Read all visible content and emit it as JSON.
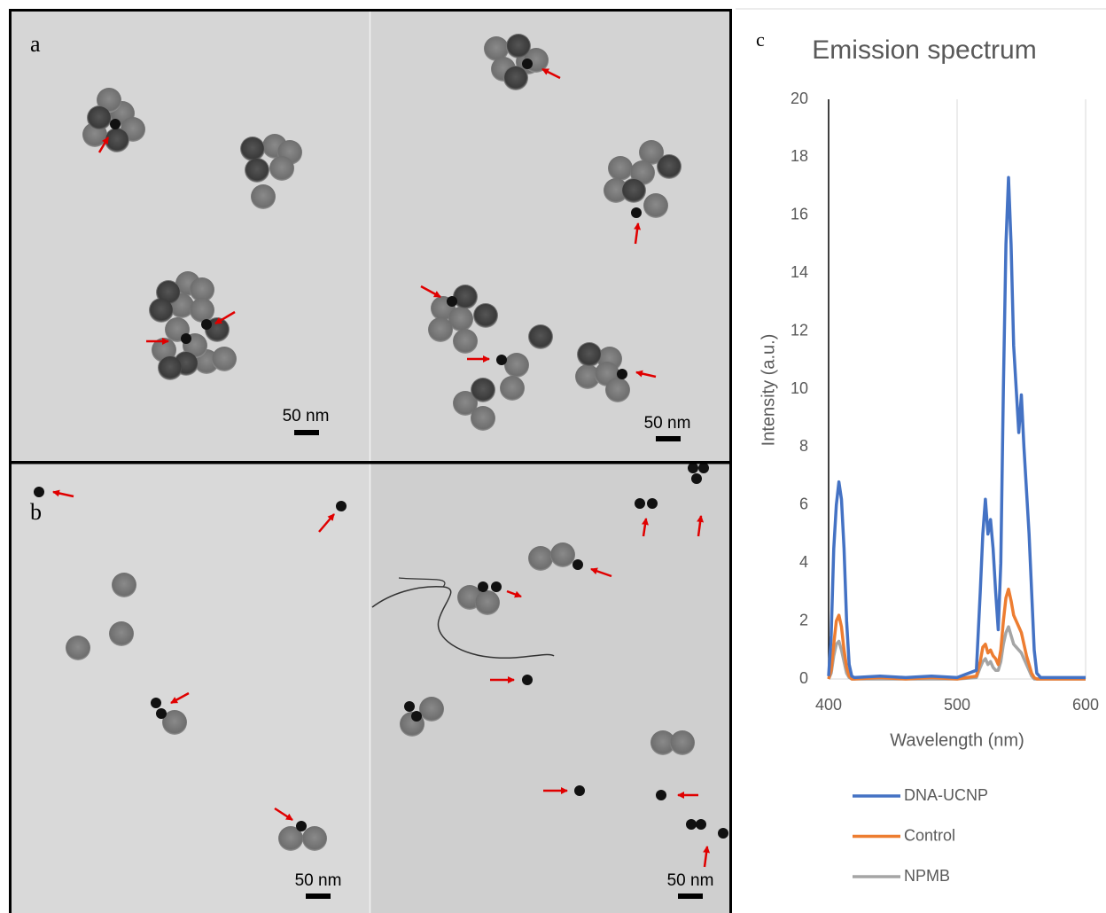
{
  "figure": {
    "panel_labels": [
      "a",
      "b",
      "c"
    ],
    "scale_bar_labels": [
      "50 nm",
      "50 nm",
      "50 nm",
      "50 nm"
    ]
  },
  "chart_data": {
    "type": "line",
    "title": "Emission spectrum",
    "x_label": "Wavelength (nm)",
    "y_label": "Intensity (a.u.)",
    "x": [
      400,
      402,
      404,
      406,
      408,
      410,
      412,
      414,
      416,
      418,
      420,
      440,
      460,
      480,
      500,
      515,
      518,
      520,
      522,
      524,
      526,
      528,
      530,
      532,
      534,
      536,
      538,
      540,
      542,
      544,
      546,
      548,
      550,
      552,
      554,
      556,
      558,
      560,
      562,
      565,
      580,
      600
    ],
    "series": [
      {
        "name": "DNA-UCNP",
        "color": "#4472c4",
        "values": [
          0.1,
          1.5,
          4.5,
          6.0,
          6.8,
          6.2,
          4.5,
          2.0,
          0.5,
          0.1,
          0.05,
          0.1,
          0.05,
          0.1,
          0.05,
          0.3,
          3.0,
          5.0,
          6.2,
          5.0,
          5.5,
          4.5,
          3.0,
          1.7,
          4.0,
          10.0,
          15.0,
          17.3,
          15.0,
          11.5,
          10.0,
          8.5,
          9.8,
          8.0,
          6.5,
          5.0,
          3.0,
          1.0,
          0.2,
          0.05,
          0.05,
          0.05
        ]
      },
      {
        "name": "Control",
        "color": "#ed7d31",
        "values": [
          0,
          0.3,
          1.2,
          2.0,
          2.2,
          1.8,
          1.0,
          0.4,
          0.1,
          0,
          0,
          0.05,
          0,
          0.05,
          0,
          0.1,
          0.6,
          1.1,
          1.2,
          0.9,
          1.0,
          0.8,
          0.7,
          0.5,
          1.0,
          2.0,
          2.8,
          3.1,
          2.7,
          2.2,
          2.0,
          1.8,
          1.6,
          1.2,
          0.8,
          0.5,
          0.2,
          0.05,
          0,
          0,
          0,
          0
        ]
      },
      {
        "name": "NPMB",
        "color": "#a5a5a5",
        "values": [
          0,
          0.2,
          0.8,
          1.2,
          1.3,
          1.0,
          0.6,
          0.2,
          0.05,
          0,
          0,
          0,
          0,
          0,
          0,
          0.05,
          0.4,
          0.6,
          0.7,
          0.5,
          0.6,
          0.4,
          0.3,
          0.3,
          0.6,
          1.2,
          1.6,
          1.8,
          1.5,
          1.2,
          1.1,
          1.0,
          0.9,
          0.7,
          0.5,
          0.3,
          0.1,
          0,
          0,
          0,
          0,
          0
        ]
      }
    ],
    "xlim": [
      400,
      600
    ],
    "ylim": [
      0,
      20
    ],
    "xticks": [
      400,
      500,
      600
    ],
    "yticks": [
      0,
      2,
      4,
      6,
      8,
      10,
      12,
      14,
      16,
      18,
      20
    ],
    "grid": "x",
    "legend": "bottom"
  }
}
